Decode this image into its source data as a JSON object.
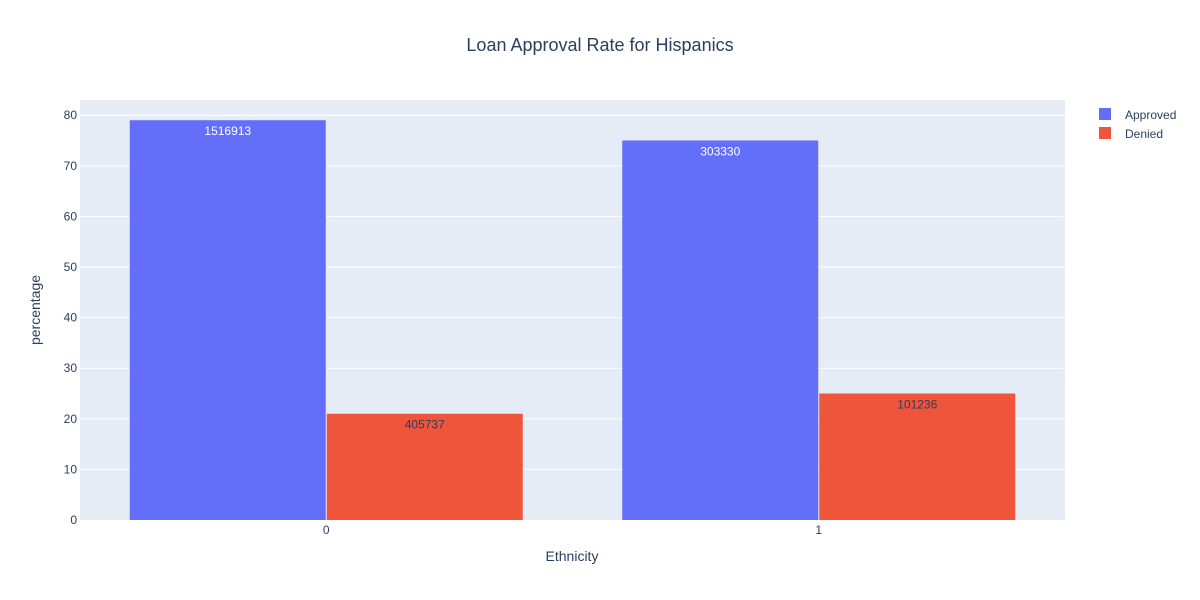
{
  "chart_data": {
    "type": "bar",
    "barmode": "group",
    "title": "Loan Approval Rate for Hispanics",
    "xlabel": "Ethnicity",
    "ylabel": "percentage",
    "categories": [
      "0",
      "1"
    ],
    "ylim": [
      0,
      83
    ],
    "yticks": [
      0,
      10,
      20,
      30,
      40,
      50,
      60,
      70,
      80
    ],
    "grid": true,
    "legend_position": "top-right",
    "series": [
      {
        "name": "Approved",
        "color": "#636efa",
        "values": [
          79,
          75
        ],
        "text": [
          "1516913",
          "303330"
        ],
        "text_color": "#ffffff"
      },
      {
        "name": "Denied",
        "color": "#ef553b",
        "values": [
          21,
          25
        ],
        "text": [
          "405737",
          "101236"
        ],
        "text_color": "#2a3f5f"
      }
    ]
  },
  "colors": {
    "plot_bg": "#e5ecf6",
    "grid": "#ffffff",
    "text": "#2a3f5f"
  }
}
